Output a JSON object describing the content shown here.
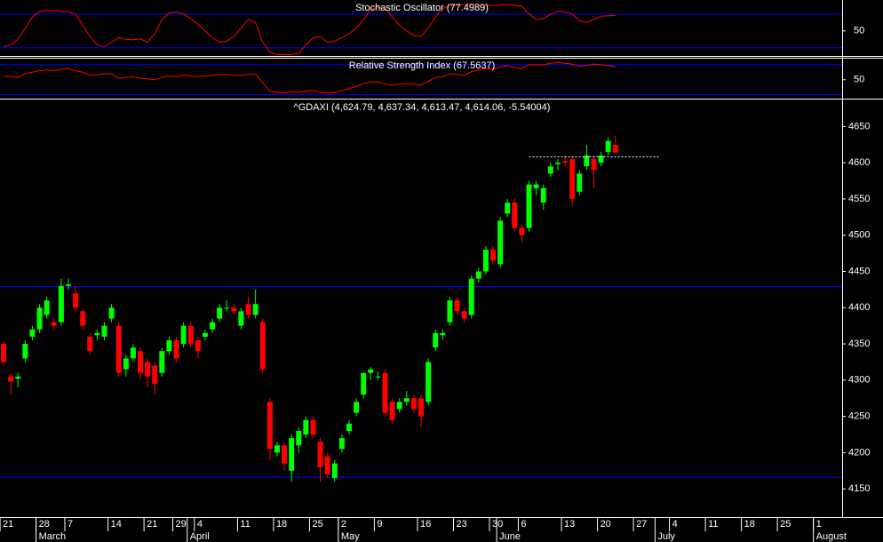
{
  "chart_data": [
    {
      "type": "line",
      "title": "Stochastic Oscillator (77.4989)",
      "color": "#ff0000",
      "ylim": [
        7,
        105
      ],
      "yticks": [
        50
      ],
      "levels": [
        80,
        20
      ],
      "values": [
        22,
        25,
        35,
        55,
        75,
        85,
        86,
        86,
        85,
        84,
        80,
        60,
        40,
        25,
        22,
        30,
        38,
        35,
        34,
        36,
        30,
        45,
        70,
        82,
        84,
        80,
        72,
        62,
        50,
        38,
        30,
        32,
        40,
        55,
        70,
        65,
        30,
        12,
        8,
        8,
        8,
        10,
        25,
        38,
        40,
        30,
        32,
        38,
        45,
        55,
        70,
        88,
        92,
        90,
        75,
        60,
        50,
        42,
        40,
        55,
        75,
        90,
        95,
        96,
        97,
        98,
        97,
        96,
        95,
        96,
        97,
        95,
        94,
        80,
        70,
        72,
        80,
        85,
        84,
        80,
        68,
        65,
        70,
        76,
        77,
        77.4989
      ]
    },
    {
      "type": "line",
      "title": "Relative Strength Index (67.5637)",
      "color": "#ff0000",
      "ylim": [
        26,
        77
      ],
      "yticks": [
        50
      ],
      "levels": [
        70,
        30
      ],
      "values": [
        55,
        54,
        53,
        58,
        60,
        62,
        63,
        62,
        64,
        65,
        62,
        60,
        56,
        57,
        58,
        58,
        52,
        53,
        54,
        52,
        51,
        50,
        53,
        55,
        54,
        56,
        55,
        54,
        55,
        56,
        57,
        57,
        56,
        56,
        57,
        58,
        46,
        35,
        33,
        32,
        34,
        33,
        35,
        36,
        33,
        32,
        33,
        36,
        38,
        41,
        45,
        47,
        47,
        44,
        43,
        44,
        45,
        44,
        43,
        48,
        53,
        54,
        58,
        57,
        56,
        61,
        63,
        65,
        64,
        67,
        69,
        66,
        65,
        70,
        70,
        70,
        72,
        73,
        72,
        71,
        68,
        69,
        71,
        70,
        69,
        67.5637
      ]
    },
    {
      "type": "candlestick",
      "title": "^GDAXI (4,624.79, 4,637.34, 4,613.47, 4,614.06, -5.54004)",
      "up_color": "#00ff00",
      "down_color": "#ff0000",
      "ylim": [
        4111,
        4686
      ],
      "yticks": [
        4150,
        4200,
        4250,
        4300,
        4350,
        4400,
        4450,
        4500,
        4550,
        4600,
        4650
      ],
      "levels": [
        4429,
        4166
      ],
      "dotted_line": {
        "value": 4608,
        "from": 73,
        "to": 91
      },
      "xlim": [
        -0.5,
        116.5
      ],
      "xticks": [
        {
          "value": 0,
          "label": "21"
        },
        {
          "value": 5,
          "label": "28"
        },
        {
          "value": 9,
          "label": "7"
        },
        {
          "value": 15,
          "label": "14"
        },
        {
          "value": 20,
          "label": "21"
        },
        {
          "value": 24,
          "label": "29"
        },
        {
          "value": 27,
          "label": "4"
        },
        {
          "value": 33,
          "label": "11"
        },
        {
          "value": 38,
          "label": "18"
        },
        {
          "value": 43,
          "label": "25"
        },
        {
          "value": 47,
          "label": "2"
        },
        {
          "value": 52,
          "label": "9"
        },
        {
          "value": 58,
          "label": "16"
        },
        {
          "value": 63,
          "label": "23"
        },
        {
          "value": 68,
          "label": "30"
        },
        {
          "value": 72,
          "label": "6"
        },
        {
          "value": 78,
          "label": "13"
        },
        {
          "value": 83,
          "label": "20"
        },
        {
          "value": 88,
          "label": "27"
        },
        {
          "value": 93,
          "label": "4"
        },
        {
          "value": 98,
          "label": "11"
        },
        {
          "value": 103,
          "label": "18"
        },
        {
          "value": 108,
          "label": "25"
        },
        {
          "value": 113,
          "label": "1"
        }
      ],
      "month_ticks": [
        {
          "value": 5,
          "label": "March"
        },
        {
          "value": 26,
          "label": "April"
        },
        {
          "value": 47,
          "label": "May"
        },
        {
          "value": 69,
          "label": "June"
        },
        {
          "value": 91,
          "label": "July"
        },
        {
          "value": 113,
          "label": "August"
        }
      ],
      "open": [
        4350,
        4305,
        4302,
        4330,
        4360,
        4370,
        4390,
        4380,
        4380,
        4430,
        4420,
        4395,
        4360,
        4362,
        4360,
        4385,
        4375,
        4315,
        4330,
        4340,
        4325,
        4320,
        4310,
        4340,
        4355,
        4350,
        4375,
        4355,
        4360,
        4370,
        4385,
        4400,
        4400,
        4375,
        4405,
        4390,
        4380,
        4270,
        4200,
        4210,
        4175,
        4210,
        4225,
        4245,
        4215,
        4195,
        4165,
        4205,
        4230,
        4255,
        4280,
        4310,
        4305,
        4310,
        4270,
        4260,
        4270,
        4275,
        4275,
        4270,
        4345,
        4362,
        4380,
        4410,
        4395,
        4390,
        4440,
        4450,
        4480,
        4460,
        4530,
        4545,
        4510,
        4510,
        4565,
        4545,
        4585,
        4598,
        4602,
        4605,
        4560,
        4595,
        4605,
        4600,
        4615,
        4624.79
      ],
      "high": [
        4355,
        4310,
        4310,
        4355,
        4375,
        4405,
        4415,
        4385,
        4440,
        4440,
        4430,
        4400,
        4365,
        4370,
        4380,
        4405,
        4380,
        4335,
        4350,
        4345,
        4330,
        4325,
        4345,
        4360,
        4360,
        4380,
        4380,
        4360,
        4370,
        4385,
        4405,
        4410,
        4405,
        4400,
        4415,
        4425,
        4385,
        4275,
        4215,
        4215,
        4225,
        4235,
        4250,
        4250,
        4220,
        4200,
        4190,
        4225,
        4245,
        4275,
        4310,
        4318,
        4312,
        4315,
        4275,
        4275,
        4285,
        4280,
        4280,
        4330,
        4370,
        4370,
        4415,
        4415,
        4400,
        4445,
        4455,
        4485,
        4485,
        4525,
        4550,
        4550,
        4515,
        4575,
        4575,
        4570,
        4600,
        4605,
        4610,
        4610,
        4590,
        4625,
        4610,
        4615,
        4635,
        4637.34
      ],
      "low": [
        4320,
        4280,
        4290,
        4325,
        4355,
        4365,
        4385,
        4370,
        4375,
        4425,
        4395,
        4370,
        4335,
        4355,
        4355,
        4380,
        4305,
        4305,
        4325,
        4300,
        4290,
        4280,
        4305,
        4335,
        4325,
        4345,
        4345,
        4330,
        4355,
        4365,
        4380,
        4395,
        4390,
        4370,
        4385,
        4385,
        4310,
        4190,
        4195,
        4175,
        4160,
        4200,
        4220,
        4220,
        4160,
        4165,
        4160,
        4200,
        4225,
        4250,
        4275,
        4300,
        4300,
        4250,
        4240,
        4255,
        4265,
        4255,
        4235,
        4265,
        4340,
        4355,
        4375,
        4390,
        4380,
        4385,
        4435,
        4445,
        4460,
        4455,
        4525,
        4505,
        4490,
        4505,
        4555,
        4535,
        4580,
        4590,
        4595,
        4540,
        4555,
        4590,
        4565,
        4595,
        4610,
        4613.47
      ],
      "close": [
        4325,
        4298,
        4305,
        4350,
        4370,
        4400,
        4410,
        4375,
        4430,
        4432,
        4400,
        4375,
        4340,
        4365,
        4375,
        4400,
        4310,
        4330,
        4345,
        4310,
        4305,
        4295,
        4340,
        4355,
        4330,
        4375,
        4350,
        4340,
        4365,
        4380,
        4400,
        4400,
        4395,
        4395,
        4390,
        4405,
        4315,
        4205,
        4210,
        4185,
        4220,
        4230,
        4245,
        4225,
        4180,
        4170,
        4185,
        4220,
        4240,
        4270,
        4310,
        4315,
        4305,
        4255,
        4245,
        4270,
        4275,
        4260,
        4250,
        4325,
        4365,
        4365,
        4410,
        4395,
        4385,
        4440,
        4450,
        4480,
        4465,
        4520,
        4545,
        4510,
        4500,
        4570,
        4570,
        4565,
        4595,
        4600,
        4600,
        4550,
        4585,
        4610,
        4590,
        4610,
        4630,
        4614.06
      ]
    }
  ]
}
